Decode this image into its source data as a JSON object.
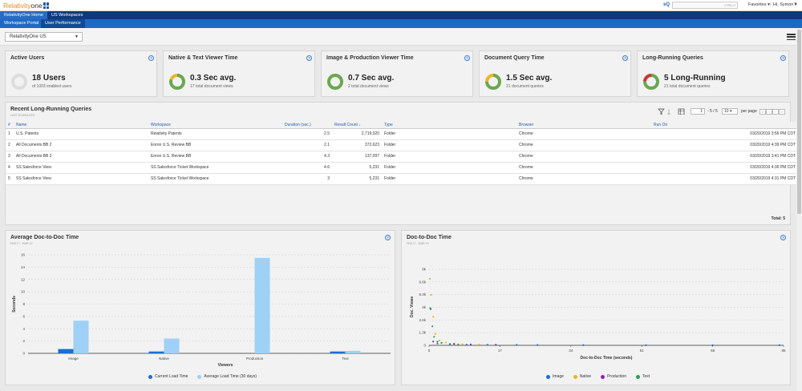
{
  "app": {
    "logo_main": "Relativity",
    "logo_suffix": "one",
    "search_icon_label": "sQ",
    "search_hint": "CTRL+/",
    "favorites_label": "Favorites",
    "user_label": "Hi, Symon",
    "help_label": "?"
  },
  "nav": {
    "tabs": [
      "RelativityOne Home",
      "US Workspaces"
    ],
    "subtabs": [
      "Workspace Portal",
      "User Performance"
    ]
  },
  "workspace_select": {
    "value": "RelativityOne US"
  },
  "metrics": [
    {
      "title": "Active Users",
      "value": "18 Users",
      "sub": "of 1003 enabled users",
      "donut_colors": [
        "#dddddd"
      ],
      "donut_fracs": [
        1.0
      ]
    },
    {
      "title": "Native & Text Viewer Time",
      "value": "0.3 Sec avg.",
      "sub": "17 total document views",
      "donut_colors": [
        "#6aa84f",
        "#f0b323"
      ],
      "donut_fracs": [
        0.8,
        0.2
      ]
    },
    {
      "title": "Image & Production Viewer Time",
      "value": "0.7 Sec avg.",
      "sub": "2 total document views",
      "donut_colors": [
        "#6aa84f"
      ],
      "donut_fracs": [
        1.0
      ]
    },
    {
      "title": "Document Query Time",
      "value": "1.5 Sec avg.",
      "sub": "21 document queries",
      "donut_colors": [
        "#6aa84f",
        "#f0b323"
      ],
      "donut_fracs": [
        0.75,
        0.25
      ]
    },
    {
      "title": "Long-Running Queries",
      "value": "5 Long-Running",
      "sub": "21 total document queries",
      "donut_colors": [
        "#6aa84f",
        "#cc3333"
      ],
      "donut_fracs": [
        0.76,
        0.24
      ]
    }
  ],
  "queries": {
    "title": "Recent Long-Running Queries",
    "subtitle": "LAST 60 MINUTES",
    "page_input": "1",
    "page_range": "- 5 / 5",
    "page_size": "10",
    "per_page_label": "per page",
    "columns": [
      "#",
      "Name",
      "Workspace",
      "Duration (sec.)",
      "Result Count",
      "Type",
      "Browser",
      "Run On"
    ],
    "rows": [
      [
        "1",
        "U.S. Patents",
        "Relativity Patents",
        "2.5",
        "2,719,020",
        "Folder",
        "Chrome",
        "03/20/2019 3:56 PM CDT"
      ],
      [
        "2",
        "All Documents BB 2",
        "Enron U.S. Review BB",
        "2.1",
        "372,623",
        "Folder",
        "Chrome",
        "03/20/2019 4:39 PM CDT"
      ],
      [
        "3",
        "All Documents BB 2",
        "Enron U.S. Review BB",
        "4.3",
        "137,097",
        "Folder",
        "Chrome",
        "03/20/2019 3:41 PM CDT"
      ],
      [
        "4",
        "SS Salesforce View",
        "SS Salesforce Ticket Workspace",
        "4.6",
        "5,231",
        "Folder",
        "Chrome",
        "03/20/2019 4:36 PM CDT"
      ],
      [
        "5",
        "SS Salesforce View",
        "SS Salesforce Ticket Workspace",
        "3",
        "5,231",
        "Folder",
        "Chrome",
        "03/20/2019 4:31 PM CDT"
      ]
    ],
    "total_label": "Total: 5"
  },
  "chart_data": [
    {
      "type": "bar",
      "title": "Average Doc-to-Doc Time",
      "subtitle": "FEB 17 - MAR 19",
      "xlabel": "Viewers",
      "ylabel": "Seconds",
      "categories": [
        "Image",
        "Native",
        "Production",
        "Text"
      ],
      "ylim": [
        0,
        16
      ],
      "yticks": [
        "0",
        "2",
        "4",
        "6",
        "8",
        "10",
        "12",
        "14",
        "16"
      ],
      "series": [
        {
          "name": "Current Load Time",
          "color": "#1b6fcf",
          "values": [
            0.7,
            0.3,
            0,
            0.3
          ]
        },
        {
          "name": "Average Load Time (30 days)",
          "color": "#9fd0f5",
          "values": [
            5.3,
            2.4,
            15.5,
            0.4
          ]
        }
      ],
      "legend": "bottom"
    },
    {
      "type": "scatter",
      "title": "Doc-to-Doc Time",
      "subtitle": "FEB 17 - MAR 19",
      "xlabel": "Doc-to-Doc Time (seconds)",
      "ylabel": "Doc. Views",
      "xlim": [
        0,
        85
      ],
      "ylim": [
        0,
        8000
      ],
      "xticks": [
        "0",
        "17",
        "34",
        "51",
        "68",
        "85"
      ],
      "yticks": [
        "0",
        "1.3k",
        "2.6k",
        "4k",
        "5.3k",
        "6.6k",
        "8k"
      ],
      "series": [
        {
          "name": "Image",
          "color": "#1b6fcf",
          "points": [
            [
              0.3,
              3900
            ],
            [
              2,
              200
            ],
            [
              5,
              110
            ],
            [
              9,
              70
            ],
            [
              14,
              50
            ],
            [
              21,
              40
            ],
            [
              26,
              30
            ],
            [
              37,
              20
            ],
            [
              52,
              15
            ],
            [
              68,
              10
            ],
            [
              84,
              8
            ]
          ]
        },
        {
          "name": "Native",
          "color": "#f0b323",
          "points": [
            [
              0.2,
              7000
            ],
            [
              0.5,
              5300
            ],
            [
              1,
              3000
            ],
            [
              1.5,
              1200
            ],
            [
              2.5,
              500
            ],
            [
              4,
              300
            ],
            [
              6,
              180
            ],
            [
              8,
              120
            ],
            [
              12,
              90
            ]
          ]
        },
        {
          "name": "Production",
          "color": "#8e24aa",
          "points": [
            [
              1,
              400
            ],
            [
              3,
              250
            ],
            [
              6,
              150
            ],
            [
              10,
              90
            ],
            [
              16,
              60
            ]
          ]
        },
        {
          "name": "Text",
          "color": "#2e9e4e",
          "points": [
            [
              0.4,
              3800
            ],
            [
              0.8,
              2000
            ],
            [
              1.2,
              900
            ],
            [
              2,
              400
            ],
            [
              3,
              260
            ],
            [
              5,
              150
            ],
            [
              7,
              100
            ]
          ]
        }
      ],
      "legend": "bottom"
    }
  ]
}
